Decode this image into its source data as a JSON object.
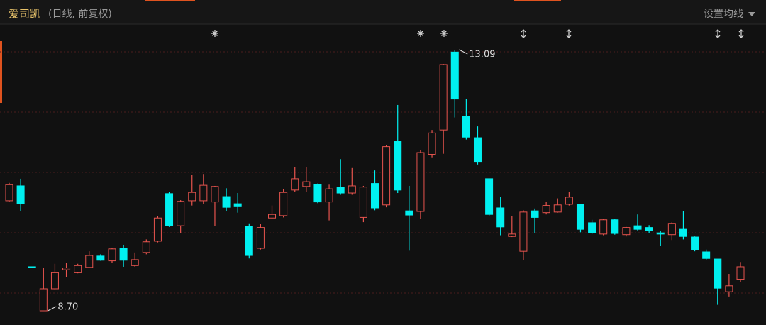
{
  "chart_data": {
    "type": "candlestick",
    "title": "爱司凯",
    "subtitle": "(日线, 前复权)",
    "settings_label": "设置均线",
    "max_label": "13.09",
    "min_label": "8.70",
    "up_color": "#e8544e",
    "down_color": "#00f0f0",
    "open": [
      10.55,
      10.8,
      9.44,
      8.7,
      9.07,
      9.39,
      9.34,
      9.43,
      9.62,
      9.54,
      9.75,
      9.46,
      9.68,
      9.87,
      10.67,
      10.13,
      10.55,
      10.55,
      10.53,
      10.62,
      10.5,
      10.12,
      9.75,
      10.26,
      10.3,
      10.73,
      10.79,
      10.82,
      10.53,
      10.78,
      10.68,
      10.27,
      10.84,
      10.48,
      11.55,
      10.38,
      10.37,
      11.33,
      11.74,
      13.05,
      11.97,
      11.61,
      10.92,
      10.43,
      9.95,
      9.7,
      10.38,
      10.35,
      10.36,
      10.49,
      10.49,
      10.18,
      9.99,
      10.23,
      9.98,
      10.13,
      10.1,
      10.01,
      9.98,
      10.07,
      9.94,
      9.69,
      9.57,
      9.02,
      9.23
    ],
    "high": [
      10.85,
      10.92,
      9.44,
      9.42,
      9.49,
      9.51,
      9.49,
      9.7,
      9.65,
      9.75,
      9.81,
      9.68,
      9.9,
      10.29,
      10.7,
      10.56,
      10.98,
      11.0,
      10.8,
      10.76,
      10.68,
      10.17,
      10.16,
      10.47,
      10.74,
      11.11,
      11.11,
      10.84,
      10.82,
      11.25,
      11.1,
      10.8,
      11.06,
      11.48,
      12.16,
      10.8,
      11.4,
      11.74,
      12.85,
      13.09,
      12.26,
      11.8,
      10.92,
      10.61,
      10.29,
      10.39,
      10.42,
      10.53,
      10.59,
      10.7,
      10.49,
      10.23,
      10.24,
      10.24,
      10.11,
      10.32,
      10.14,
      10.04,
      10.19,
      10.37,
      9.95,
      9.73,
      9.57,
      9.32,
      9.52
    ],
    "low": [
      10.53,
      10.37,
      9.43,
      8.7,
      9.06,
      9.27,
      9.33,
      9.42,
      9.54,
      9.51,
      9.44,
      9.44,
      9.65,
      9.85,
      10.11,
      10.01,
      10.47,
      10.49,
      10.13,
      10.37,
      10.35,
      9.58,
      9.73,
      10.24,
      10.27,
      10.7,
      10.7,
      10.51,
      10.22,
      10.65,
      10.65,
      10.19,
      10.39,
      10.44,
      10.68,
      9.71,
      10.24,
      11.28,
      11.34,
      11.95,
      11.58,
      11.16,
      10.29,
      9.97,
      9.94,
      9.55,
      10.01,
      10.32,
      10.35,
      10.47,
      10.02,
      9.99,
      9.97,
      9.98,
      9.95,
      10.05,
      10.01,
      9.79,
      9.89,
      9.9,
      9.7,
      9.56,
      8.8,
      8.94,
      9.18
    ],
    "close": [
      10.82,
      10.5,
      9.43,
      9.07,
      9.34,
      9.42,
      9.46,
      9.63,
      9.55,
      9.74,
      9.55,
      9.56,
      9.86,
      10.26,
      10.13,
      10.54,
      10.69,
      10.81,
      10.79,
      10.44,
      10.45,
      9.63,
      10.1,
      10.32,
      10.69,
      10.92,
      10.87,
      10.53,
      10.75,
      10.68,
      10.8,
      10.78,
      10.43,
      11.46,
      10.73,
      10.31,
      11.36,
      11.69,
      12.84,
      12.26,
      11.62,
      11.21,
      10.32,
      10.11,
      9.99,
      10.36,
      10.27,
      10.47,
      10.48,
      10.61,
      10.07,
      10.01,
      10.23,
      10.0,
      10.1,
      10.07,
      10.05,
      9.99,
      10.17,
      9.95,
      9.73,
      9.58,
      9.08,
      9.12,
      9.44
    ]
  }
}
